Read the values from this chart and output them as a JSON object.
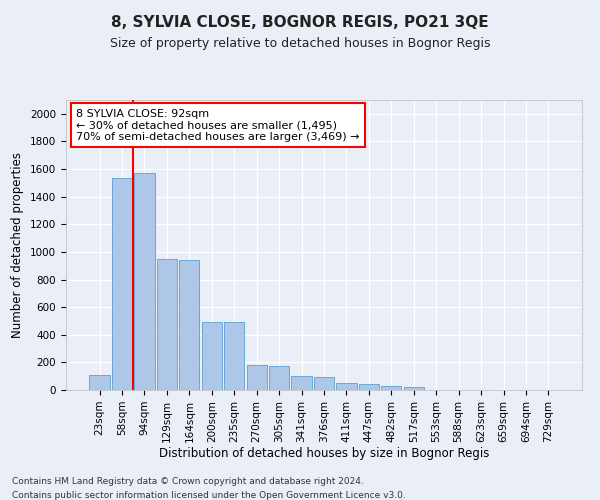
{
  "title": "8, SYLVIA CLOSE, BOGNOR REGIS, PO21 3QE",
  "subtitle": "Size of property relative to detached houses in Bognor Regis",
  "xlabel": "Distribution of detached houses by size in Bognor Regis",
  "ylabel": "Number of detached properties",
  "categories": [
    "23sqm",
    "58sqm",
    "94sqm",
    "129sqm",
    "164sqm",
    "200sqm",
    "235sqm",
    "270sqm",
    "305sqm",
    "341sqm",
    "376sqm",
    "411sqm",
    "447sqm",
    "482sqm",
    "517sqm",
    "553sqm",
    "588sqm",
    "623sqm",
    "659sqm",
    "694sqm",
    "729sqm"
  ],
  "values": [
    110,
    1535,
    1575,
    950,
    945,
    490,
    490,
    180,
    175,
    100,
    95,
    50,
    45,
    30,
    25,
    0,
    0,
    0,
    0,
    0,
    0
  ],
  "bar_color": "#aec6e8",
  "bar_edge_color": "#5a9fd4",
  "ylim": [
    0,
    2100
  ],
  "yticks": [
    0,
    200,
    400,
    600,
    800,
    1000,
    1200,
    1400,
    1600,
    1800,
    2000
  ],
  "property_label": "8 SYLVIA CLOSE: 92sqm",
  "annotation_line1": "← 30% of detached houses are smaller (1,495)",
  "annotation_line2": "70% of semi-detached houses are larger (3,469) →",
  "red_line_x": 1.5,
  "footnote1": "Contains HM Land Registry data © Crown copyright and database right 2024.",
  "footnote2": "Contains public sector information licensed under the Open Government Licence v3.0.",
  "background_color": "#eaeff7",
  "grid_color": "#ffffff",
  "title_fontsize": 11,
  "subtitle_fontsize": 9,
  "axis_label_fontsize": 8.5,
  "tick_fontsize": 7.5,
  "annotation_fontsize": 8
}
